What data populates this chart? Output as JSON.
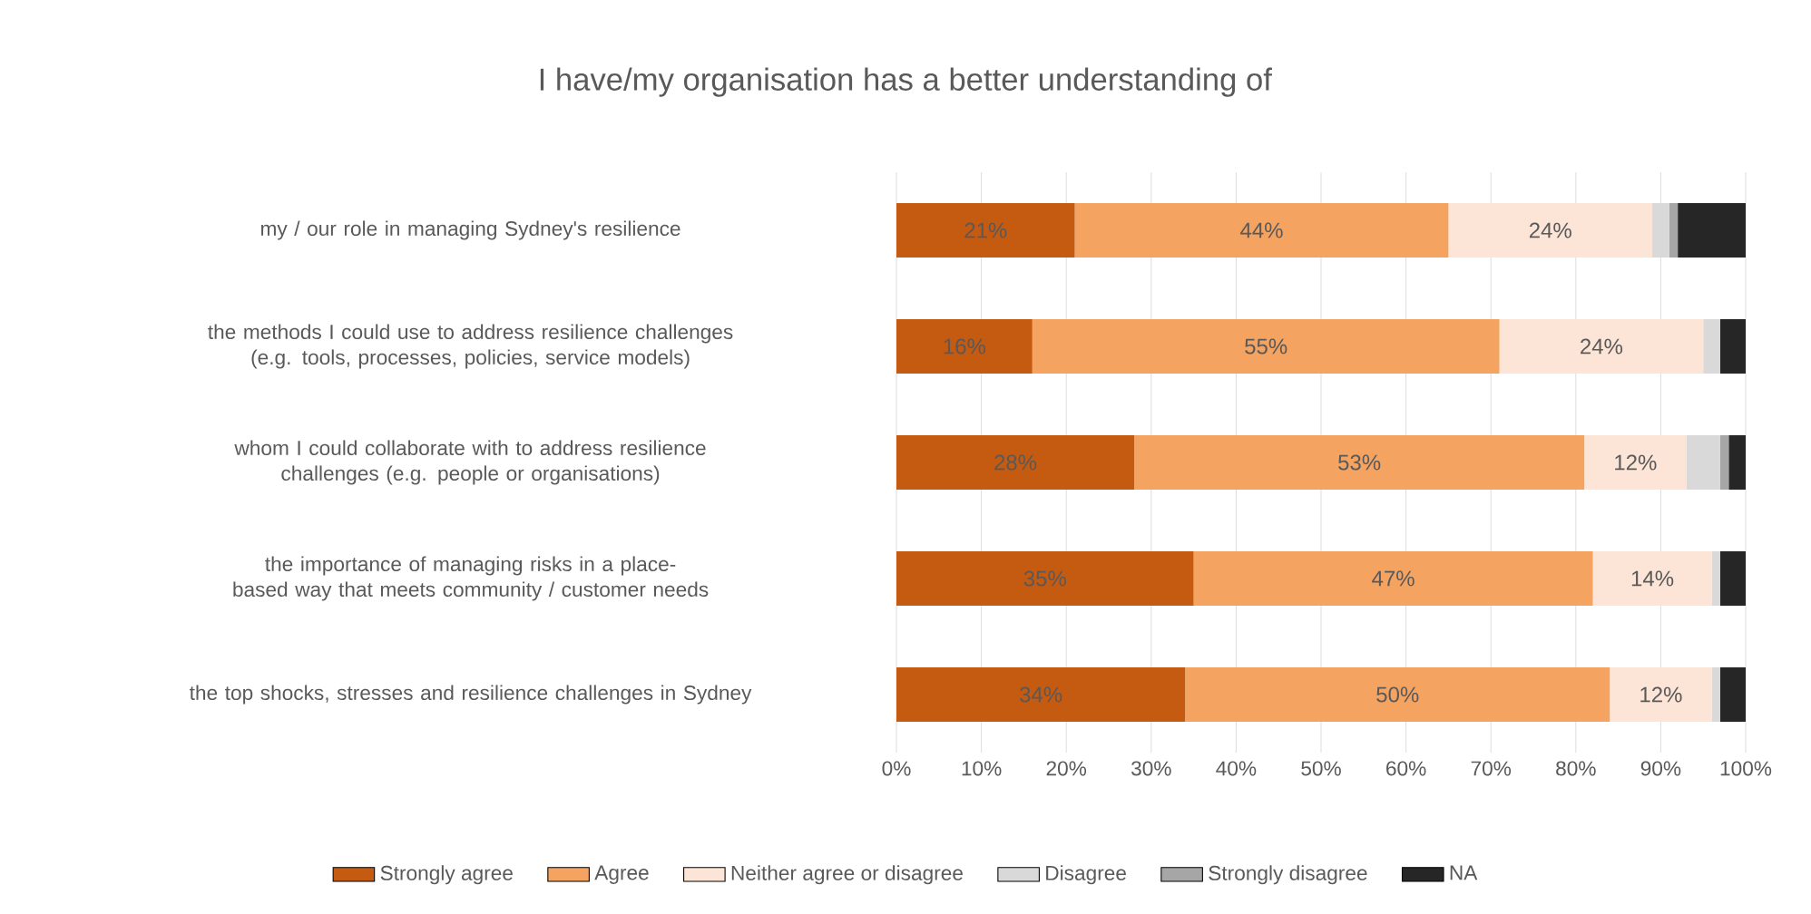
{
  "chart_data": {
    "type": "bar",
    "orientation": "horizontal",
    "stacked": true,
    "title": "I have/my organisation has a better understanding of",
    "categories": [
      "my / our role in managing Sydney's resilience",
      "the methods I could use to address resilience challenges (e.g. tools, processes, policies, service models)",
      "whom I could collaborate with to address resilience challenges (e.g. people or organisations)",
      "the importance of managing risks in a place-based way that meets community / customer needs",
      "the top shocks, stresses and resilience challenges in Sydney"
    ],
    "series": [
      {
        "name": "Strongly agree",
        "color": "#c55a11",
        "values": [
          21,
          16,
          28,
          35,
          34
        ],
        "value_labels": [
          "21%",
          "16%",
          "28%",
          "35%",
          "34%"
        ]
      },
      {
        "name": "Agree",
        "color": "#f4a361",
        "values": [
          44,
          55,
          53,
          47,
          50
        ],
        "value_labels": [
          "44%",
          "55%",
          "53%",
          "47%",
          "50%"
        ]
      },
      {
        "name": "Neither agree or disagree",
        "color": "#fce4d6",
        "values": [
          24,
          24,
          12,
          14,
          12
        ],
        "value_labels": [
          "24%",
          "24%",
          "12%",
          "14%",
          "12%"
        ]
      },
      {
        "name": "Disagree",
        "color": "#d9d9d9",
        "values": [
          2,
          2,
          4,
          1,
          1
        ]
      },
      {
        "name": "Strongly disagree",
        "color": "#a6a6a6",
        "values": [
          1,
          0,
          1,
          0,
          0
        ]
      },
      {
        "name": "NA",
        "color": "#262626",
        "values": [
          8,
          3,
          2,
          3,
          3
        ]
      }
    ],
    "xlim": [
      0,
      100
    ],
    "xticks": [
      {
        "value": 0,
        "label": "0%"
      },
      {
        "value": 10,
        "label": "10%"
      },
      {
        "value": 20,
        "label": "20%"
      },
      {
        "value": 30,
        "label": "30%"
      },
      {
        "value": 40,
        "label": "40%"
      },
      {
        "value": 50,
        "label": "50%"
      },
      {
        "value": 60,
        "label": "60%"
      },
      {
        "value": 70,
        "label": "70%"
      },
      {
        "value": 80,
        "label": "80%"
      },
      {
        "value": 90,
        "label": "90%"
      },
      {
        "value": 100,
        "label": "100%"
      }
    ],
    "grid": "x",
    "legend": "bottom"
  }
}
